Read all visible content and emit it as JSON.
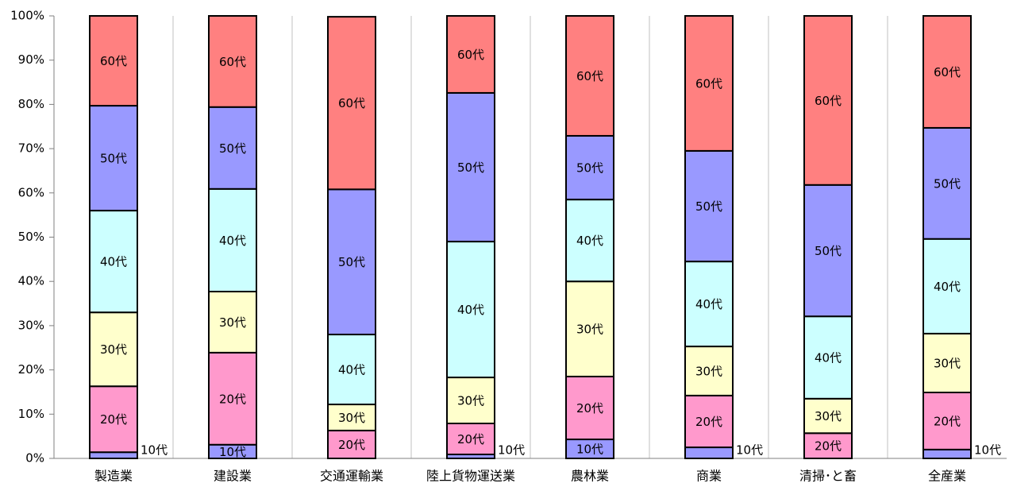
{
  "chart_data": {
    "type": "stacked_bar",
    "categories": [
      "製造業",
      "建設業",
      "交通運輸業",
      "陸上貨物運送業",
      "農林業",
      "商業",
      "清掃･と畜",
      "全産業"
    ],
    "series": [
      {
        "name": "10代",
        "color": "#9999ff",
        "values": [
          1.4,
          3.1,
          0,
          0.9,
          4.3,
          2.5,
          0,
          2.0
        ]
      },
      {
        "name": "20代",
        "color": "#ff99cc",
        "values": [
          14.9,
          20.8,
          6.3,
          7.0,
          14.2,
          11.7,
          5.7,
          12.9
        ]
      },
      {
        "name": "30代",
        "color": "#ffffcc",
        "values": [
          16.7,
          13.8,
          5.9,
          10.4,
          21.5,
          11.1,
          7.8,
          13.3
        ]
      },
      {
        "name": "40代",
        "color": "#ccffff",
        "values": [
          23.0,
          23.2,
          15.8,
          30.7,
          18.5,
          19.2,
          18.6,
          21.4
        ]
      },
      {
        "name": "50代",
        "color": "#9999ff",
        "values": [
          23.7,
          18.5,
          32.8,
          33.6,
          14.4,
          25.0,
          29.7,
          25.1
        ]
      },
      {
        "name": "60代",
        "color": "#ff8080",
        "values": [
          20.3,
          20.6,
          39.0,
          17.4,
          27.1,
          30.5,
          38.2,
          25.3
        ]
      }
    ],
    "ylim": [
      0,
      100
    ],
    "yticks": [
      {
        "value": 0,
        "label": "0%"
      },
      {
        "value": 10,
        "label": "10%"
      },
      {
        "value": 20,
        "label": "20%"
      },
      {
        "value": 30,
        "label": "30%"
      },
      {
        "value": 40,
        "label": "40%"
      },
      {
        "value": 50,
        "label": "50%"
      },
      {
        "value": 60,
        "label": "60%"
      },
      {
        "value": 70,
        "label": "70%"
      },
      {
        "value": 80,
        "label": "80%"
      },
      {
        "value": 90,
        "label": "90%"
      },
      {
        "value": 100,
        "label": "100%"
      }
    ]
  }
}
